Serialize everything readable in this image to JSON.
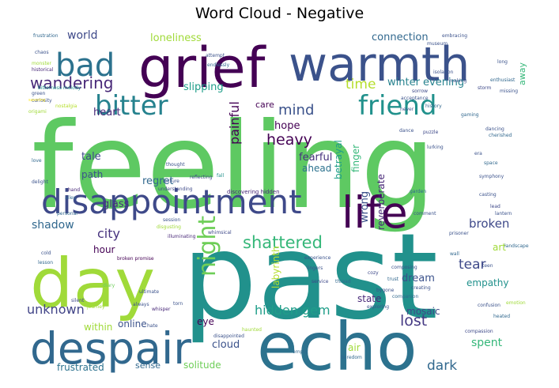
{
  "chart_data": {
    "type": "wordcloud",
    "title": "Word Cloud - Negative",
    "words": [
      {
        "text": "feeling",
        "weight": 100,
        "color": "#5ec962"
      },
      {
        "text": "past",
        "weight": 98,
        "color": "#21918c"
      },
      {
        "text": "grief",
        "weight": 62,
        "color": "#440154"
      },
      {
        "text": "warmth",
        "weight": 58,
        "color": "#3b528b"
      },
      {
        "text": "day",
        "weight": 66,
        "color": "#a0da39"
      },
      {
        "text": "echo",
        "weight": 64,
        "color": "#2c728e"
      },
      {
        "text": "despair",
        "weight": 48,
        "color": "#31688e"
      },
      {
        "text": "life",
        "weight": 46,
        "color": "#440154"
      },
      {
        "text": "disappointment",
        "weight": 40,
        "color": "#3e4989"
      },
      {
        "text": "bad",
        "weight": 30,
        "color": "#2c728e"
      },
      {
        "text": "bitter",
        "weight": 28,
        "color": "#26828e"
      },
      {
        "text": "friend",
        "weight": 28,
        "color": "#21918c"
      },
      {
        "text": "night",
        "weight": 24,
        "color": "#6ece58"
      },
      {
        "text": "wandering",
        "weight": 18,
        "color": "#482878"
      },
      {
        "text": "shattered",
        "weight": 18,
        "color": "#35b779"
      },
      {
        "text": "heavy",
        "weight": 16,
        "color": "#440154"
      },
      {
        "text": "mind",
        "weight": 16,
        "color": "#3b528b"
      },
      {
        "text": "time",
        "weight": 14,
        "color": "#b5de2b"
      },
      {
        "text": "hidden gem",
        "weight": 14,
        "color": "#1f9e89"
      },
      {
        "text": "lost",
        "weight": 15,
        "color": "#443983"
      },
      {
        "text": "dark",
        "weight": 14,
        "color": "#31688e"
      },
      {
        "text": "unknown",
        "weight": 14,
        "color": "#414487"
      },
      {
        "text": "city",
        "weight": 13,
        "color": "#46327e"
      },
      {
        "text": "tear",
        "weight": 14,
        "color": "#3e4989"
      },
      {
        "text": "broken",
        "weight": 12,
        "color": "#3e4989"
      },
      {
        "text": "loneliness",
        "weight": 11,
        "color": "#a0da39"
      },
      {
        "text": "world",
        "weight": 12,
        "color": "#3e4989"
      },
      {
        "text": "connection",
        "weight": 11,
        "color": "#31688e"
      },
      {
        "text": "winter evening",
        "weight": 11,
        "color": "#26828e"
      },
      {
        "text": "slipping",
        "weight": 11,
        "color": "#1f9e89"
      },
      {
        "text": "hope",
        "weight": 10,
        "color": "#440154"
      },
      {
        "text": "heart",
        "weight": 11,
        "color": "#482878"
      },
      {
        "text": "tale",
        "weight": 11,
        "color": "#3e4989"
      },
      {
        "text": "path",
        "weight": 10,
        "color": "#3b528b"
      },
      {
        "text": "regret",
        "weight": 11,
        "color": "#31688e"
      },
      {
        "text": "fearful",
        "weight": 11,
        "color": "#46327e"
      },
      {
        "text": "ahead",
        "weight": 10,
        "color": "#2c728e"
      },
      {
        "text": "painful",
        "weight": 13,
        "color": "#440154"
      },
      {
        "text": "betrayal",
        "weight": 10,
        "color": "#1f9e89"
      },
      {
        "text": "finger",
        "weight": 10,
        "color": "#35b779"
      },
      {
        "text": "wrong",
        "weight": 11,
        "color": "#3b528b"
      },
      {
        "text": "reverberate",
        "weight": 10,
        "color": "#482878"
      },
      {
        "text": "glass",
        "weight": 11,
        "color": "#46327e"
      },
      {
        "text": "shadow",
        "weight": 12,
        "color": "#31688e"
      },
      {
        "text": "hour",
        "weight": 10,
        "color": "#440154"
      },
      {
        "text": "labyrinth",
        "weight": 10,
        "color": "#b5de2b"
      },
      {
        "text": "dream",
        "weight": 11,
        "color": "#3b528b"
      },
      {
        "text": "art",
        "weight": 10,
        "color": "#a0da39"
      },
      {
        "text": "empathy",
        "weight": 10,
        "color": "#21918c"
      },
      {
        "text": "mosaic",
        "weight": 10,
        "color": "#3e4989"
      },
      {
        "text": "state",
        "weight": 10,
        "color": "#482878"
      },
      {
        "text": "spent",
        "weight": 12,
        "color": "#35b779"
      },
      {
        "text": "within",
        "weight": 10,
        "color": "#a0da39"
      },
      {
        "text": "online",
        "weight": 10,
        "color": "#3b528b"
      },
      {
        "text": "eye",
        "weight": 10,
        "color": "#440154"
      },
      {
        "text": "cloud",
        "weight": 11,
        "color": "#3b528b"
      },
      {
        "text": "air",
        "weight": 10,
        "color": "#a0da39"
      },
      {
        "text": "frustrated",
        "weight": 10,
        "color": "#2c728e"
      },
      {
        "text": "sense",
        "weight": 9,
        "color": "#31688e"
      },
      {
        "text": "solitude",
        "weight": 10,
        "color": "#6ece58"
      },
      {
        "text": "care",
        "weight": 9,
        "color": "#440154"
      },
      {
        "text": "away",
        "weight": 9,
        "color": "#35b779"
      },
      {
        "text": "frustration",
        "weight": 3,
        "color": "#31688e"
      },
      {
        "text": "chaos",
        "weight": 3,
        "color": "#3b528b"
      },
      {
        "text": "monster",
        "weight": 3,
        "color": "#a0da39"
      },
      {
        "text": "historical",
        "weight": 3,
        "color": "#482878"
      },
      {
        "text": "bitterness melody",
        "weight": 3,
        "color": "#21918c"
      },
      {
        "text": "green",
        "weight": 3,
        "color": "#3b528b"
      },
      {
        "text": "nostalgia",
        "weight": 3,
        "color": "#b5de2b"
      },
      {
        "text": "curiosity",
        "weight": 3,
        "color": "#3b528b"
      },
      {
        "text": "origami",
        "weight": 3,
        "color": "#a0da39"
      },
      {
        "text": "savoring",
        "weight": 3,
        "color": "#fde725"
      },
      {
        "text": "fall",
        "weight": 3,
        "color": "#21918c"
      },
      {
        "text": "love",
        "weight": 3,
        "color": "#31688e"
      },
      {
        "text": "delight",
        "weight": 3,
        "color": "#3b528b"
      },
      {
        "text": "hand",
        "weight": 3,
        "color": "#482878"
      },
      {
        "text": "alley",
        "weight": 3,
        "color": "#31688e"
      },
      {
        "text": "thought",
        "weight": 3,
        "color": "#3b528b"
      },
      {
        "text": "reflecting",
        "weight": 3,
        "color": "#3e4989"
      },
      {
        "text": "lecture",
        "weight": 3,
        "color": "#3b528b"
      },
      {
        "text": "discovering hidden",
        "weight": 4,
        "color": "#482878"
      },
      {
        "text": "understanding",
        "weight": 3,
        "color": "#3e4989"
      },
      {
        "text": "personal",
        "weight": 3,
        "color": "#31688e"
      },
      {
        "text": "session",
        "weight": 3,
        "color": "#3b528b"
      },
      {
        "text": "disgusting",
        "weight": 3,
        "color": "#a0da39"
      },
      {
        "text": "illuminating",
        "weight": 3,
        "color": "#482878"
      },
      {
        "text": "whimsical",
        "weight": 3,
        "color": "#3e4989"
      },
      {
        "text": "broken promise",
        "weight": 3,
        "color": "#440154"
      },
      {
        "text": "experience",
        "weight": 3,
        "color": "#3b528b"
      },
      {
        "text": "cold",
        "weight": 3,
        "color": "#3b528b"
      },
      {
        "text": "lesson",
        "weight": 3,
        "color": "#31688e"
      },
      {
        "text": "diary",
        "weight": 3,
        "color": "#6ece58"
      },
      {
        "text": "ultimate",
        "weight": 3,
        "color": "#3b528b"
      },
      {
        "text": "silent",
        "weight": 3,
        "color": "#3e4989"
      },
      {
        "text": "journey",
        "weight": 3,
        "color": "#a0da39"
      },
      {
        "text": "always",
        "weight": 3,
        "color": "#3b528b"
      },
      {
        "text": "whisper",
        "weight": 3,
        "color": "#482878"
      },
      {
        "text": "torn",
        "weight": 3,
        "color": "#3b528b"
      },
      {
        "text": "hate",
        "weight": 3,
        "color": "#3b528b"
      },
      {
        "text": "haunted",
        "weight": 3,
        "color": "#a0da39"
      },
      {
        "text": "disappointed",
        "weight": 3,
        "color": "#3b528b"
      },
      {
        "text": "empty",
        "weight": 3,
        "color": "#31688e"
      },
      {
        "text": "boredom",
        "weight": 3,
        "color": "#31688e"
      },
      {
        "text": "lingers",
        "weight": 3,
        "color": "#3b528b"
      },
      {
        "text": "service",
        "weight": 3,
        "color": "#3e4989"
      },
      {
        "text": "thread",
        "weight": 3,
        "color": "#31688e"
      },
      {
        "text": "exploring",
        "weight": 3,
        "color": "#3b528b"
      },
      {
        "text": "composing",
        "weight": 3,
        "color": "#3b528b"
      },
      {
        "text": "cozy",
        "weight": 3,
        "color": "#3e4989"
      },
      {
        "text": "trust",
        "weight": 3,
        "color": "#31688e"
      },
      {
        "text": "creating",
        "weight": 3,
        "color": "#3b528b"
      },
      {
        "text": "companion",
        "weight": 3,
        "color": "#31688e"
      },
      {
        "text": "bygone",
        "weight": 3,
        "color": "#3b528b"
      },
      {
        "text": "compassion",
        "weight": 3,
        "color": "#3e4989"
      },
      {
        "text": "emotion",
        "weight": 3,
        "color": "#a0da39"
      },
      {
        "text": "confusion",
        "weight": 3,
        "color": "#3b528b"
      },
      {
        "text": "heated",
        "weight": 3,
        "color": "#31688e"
      },
      {
        "text": "prisoner",
        "weight": 3,
        "color": "#3b528b"
      },
      {
        "text": "wall",
        "weight": 3,
        "color": "#31688e"
      },
      {
        "text": "teen",
        "weight": 3,
        "color": "#3b528b"
      },
      {
        "text": "landscape",
        "weight": 3,
        "color": "#31688e"
      },
      {
        "text": "lantern",
        "weight": 3,
        "color": "#3b528b"
      },
      {
        "text": "lead",
        "weight": 3,
        "color": "#3e4989"
      },
      {
        "text": "casting",
        "weight": 3,
        "color": "#3b528b"
      },
      {
        "text": "garden",
        "weight": 3,
        "color": "#31688e"
      },
      {
        "text": "comment",
        "weight": 3,
        "color": "#3b528b"
      },
      {
        "text": "symphony",
        "weight": 3,
        "color": "#3b528b"
      },
      {
        "text": "space",
        "weight": 3,
        "color": "#31688e"
      },
      {
        "text": "era",
        "weight": 3,
        "color": "#3b528b"
      },
      {
        "text": "dancing",
        "weight": 3,
        "color": "#3b528b"
      },
      {
        "text": "cherished",
        "weight": 3,
        "color": "#31688e"
      },
      {
        "text": "lurking",
        "weight": 3,
        "color": "#3b528b"
      },
      {
        "text": "puzzle",
        "weight": 3,
        "color": "#3e4989"
      },
      {
        "text": "dance",
        "weight": 3,
        "color": "#3b528b"
      },
      {
        "text": "history",
        "weight": 3,
        "color": "#31688e"
      },
      {
        "text": "never",
        "weight": 3,
        "color": "#3b528b"
      },
      {
        "text": "acceptance",
        "weight": 3,
        "color": "#3b528b"
      },
      {
        "text": "sorrow",
        "weight": 3,
        "color": "#3e4989"
      },
      {
        "text": "isolation",
        "weight": 3,
        "color": "#3b528b"
      },
      {
        "text": "attempt",
        "weight": 3,
        "color": "#3b528b"
      },
      {
        "text": "endlessly",
        "weight": 3,
        "color": "#31688e"
      },
      {
        "text": "embracing",
        "weight": 3,
        "color": "#3b528b"
      },
      {
        "text": "museum",
        "weight": 3,
        "color": "#3b528b"
      },
      {
        "text": "enthusiast",
        "weight": 3,
        "color": "#31688e"
      },
      {
        "text": "missing",
        "weight": 3,
        "color": "#3b528b"
      },
      {
        "text": "long",
        "weight": 3,
        "color": "#3b528b"
      },
      {
        "text": "storm",
        "weight": 3,
        "color": "#3e4989"
      },
      {
        "text": "making",
        "weight": 3,
        "color": "#3b528b"
      },
      {
        "text": "gaming",
        "weight": 3,
        "color": "#31688e"
      }
    ]
  }
}
